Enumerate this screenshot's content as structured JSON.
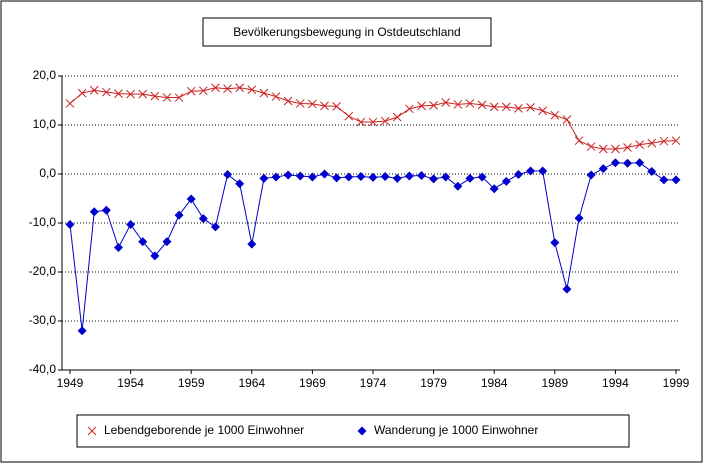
{
  "chart_data": {
    "type": "line",
    "title": "Bevölkerungsbewegung in Ostdeutschland",
    "x": [
      1949,
      1950,
      1951,
      1952,
      1953,
      1954,
      1955,
      1956,
      1957,
      1958,
      1959,
      1960,
      1961,
      1962,
      1963,
      1964,
      1965,
      1966,
      1967,
      1968,
      1969,
      1970,
      1971,
      1972,
      1973,
      1974,
      1975,
      1976,
      1977,
      1978,
      1979,
      1980,
      1981,
      1982,
      1983,
      1984,
      1985,
      1986,
      1987,
      1988,
      1989,
      1990,
      1991,
      1992,
      1993,
      1994,
      1995,
      1996,
      1997,
      1998,
      1999
    ],
    "series": [
      {
        "name": "Lebendgeborende je 1000 Einwohner",
        "color": "#cc2222",
        "marker": "x",
        "values": [
          14.4,
          16.5,
          17.1,
          16.7,
          16.4,
          16.3,
          16.3,
          15.9,
          15.6,
          15.6,
          16.9,
          17.0,
          17.6,
          17.4,
          17.6,
          17.2,
          16.5,
          15.8,
          14.9,
          14.4,
          14.3,
          13.9,
          13.8,
          11.8,
          10.6,
          10.6,
          10.8,
          11.6,
          13.3,
          13.9,
          14.0,
          14.6,
          14.2,
          14.4,
          14.1,
          13.7,
          13.7,
          13.4,
          13.6,
          12.9,
          12.0,
          11.1,
          6.8,
          5.6,
          5.1,
          5.1,
          5.4,
          6.0,
          6.3,
          6.7,
          6.8
        ]
      },
      {
        "name": "Wanderung je 1000 Einwohner",
        "color": "#0000cc",
        "marker": "diamond",
        "values": [
          -10.3,
          -32.0,
          -7.7,
          -7.4,
          -15.0,
          -10.3,
          -13.8,
          -16.7,
          -13.8,
          -8.4,
          -5.1,
          -9.1,
          -10.8,
          -0.1,
          -2.0,
          -14.3,
          -0.9,
          -0.6,
          -0.2,
          -0.4,
          -0.6,
          0.0,
          -0.8,
          -0.6,
          -0.5,
          -0.7,
          -0.5,
          -0.9,
          -0.4,
          -0.3,
          -1.0,
          -0.6,
          -2.5,
          -0.9,
          -0.6,
          -3.0,
          -1.5,
          -0.1,
          0.6,
          0.6,
          -14.0,
          -23.5,
          -9.0,
          -0.2,
          1.1,
          2.3,
          2.2,
          2.3,
          0.5,
          -1.2,
          -1.2
        ]
      }
    ],
    "xlim": [
      1949,
      1999
    ],
    "xticks": [
      1949,
      1954,
      1959,
      1964,
      1969,
      1974,
      1979,
      1984,
      1989,
      1994,
      1999
    ],
    "ylim": [
      -40,
      20
    ],
    "yticks": [
      {
        "value": -40,
        "label": "-40,0"
      },
      {
        "value": -30,
        "label": "-30,0"
      },
      {
        "value": -20,
        "label": "-20,0"
      },
      {
        "value": -10,
        "label": "-10,0"
      },
      {
        "value": 0,
        "label": "0,0"
      },
      {
        "value": 10,
        "label": "10,0"
      },
      {
        "value": 20,
        "label": "20,0"
      }
    ],
    "grid": true
  }
}
